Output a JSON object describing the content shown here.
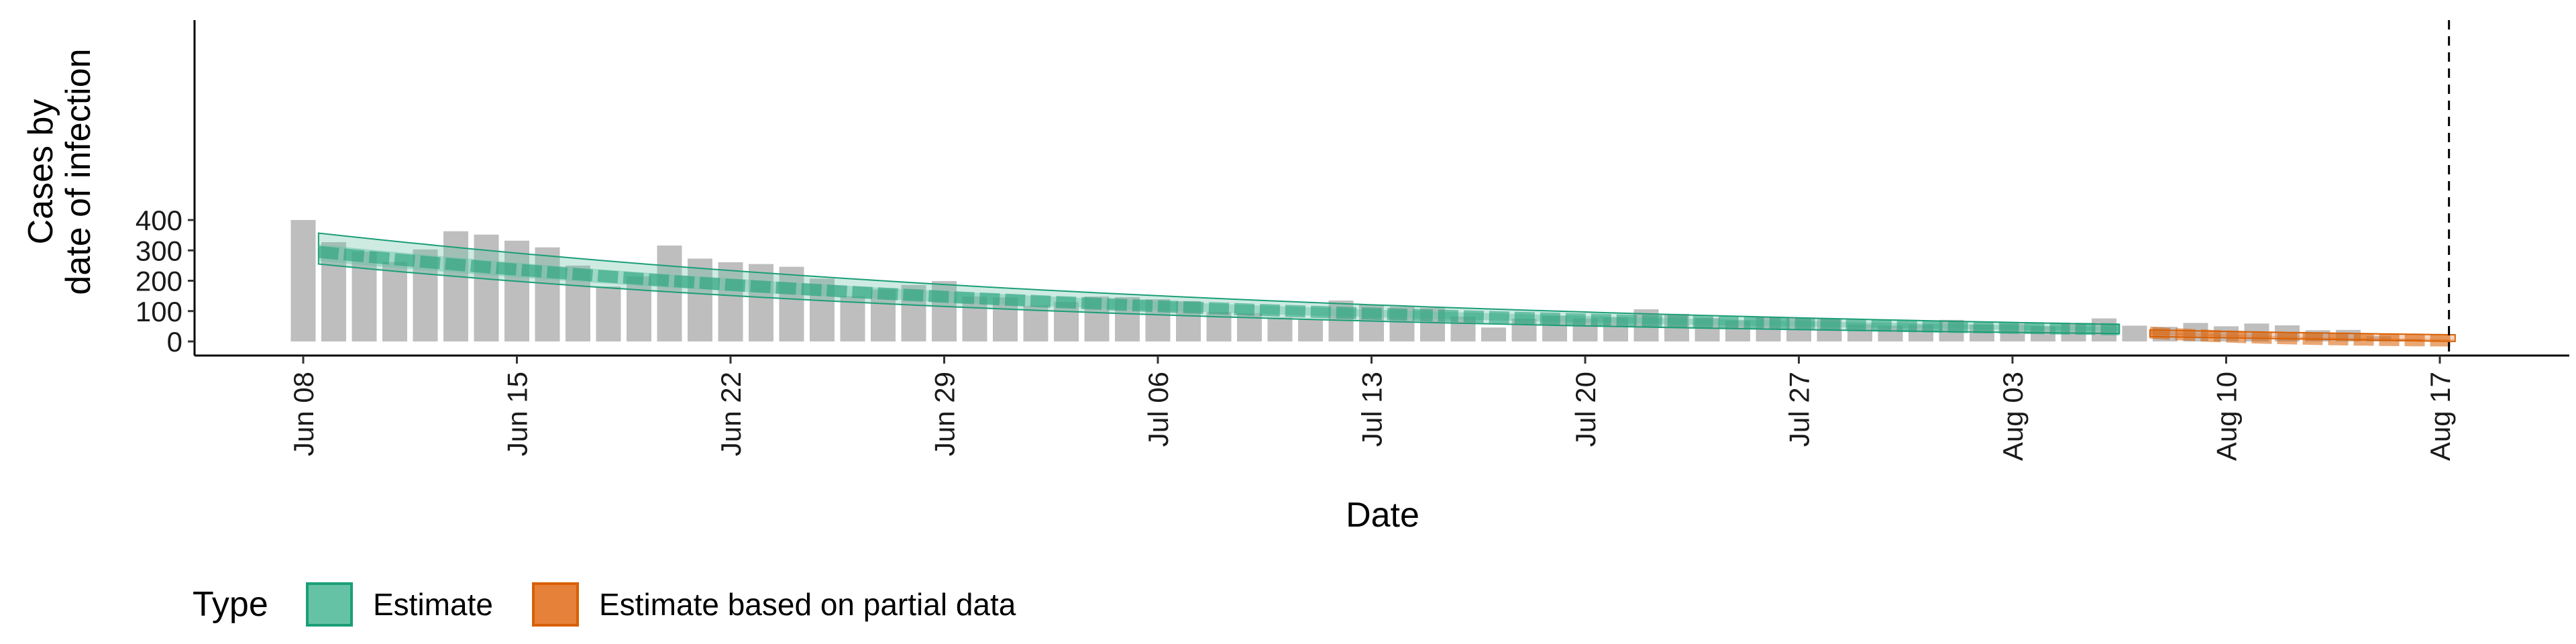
{
  "chart_data": {
    "type": "bar",
    "xlabel": "Date",
    "ylabel_lines": [
      "Cases by",
      "date of infection"
    ],
    "ylim": [
      0,
      420
    ],
    "yticks": [
      0,
      100,
      200,
      300,
      400
    ],
    "x_start_date": "2020-06-08",
    "x_end_marker": "2020-08-17",
    "x_ticks": [
      {
        "label": "Jun 08",
        "day": 0
      },
      {
        "label": "Jun 15",
        "day": 7
      },
      {
        "label": "Jun 22",
        "day": 14
      },
      {
        "label": "Jun 29",
        "day": 21
      },
      {
        "label": "Jul 06",
        "day": 28
      },
      {
        "label": "Jul 13",
        "day": 35
      },
      {
        "label": "Jul 20",
        "day": 42
      },
      {
        "label": "Jul 27",
        "day": 49
      },
      {
        "label": "Aug 03",
        "day": 56
      },
      {
        "label": "Aug 10",
        "day": 63
      },
      {
        "label": "Aug 17",
        "day": 70
      }
    ],
    "bars": [
      400,
      327,
      296,
      262,
      303,
      363,
      352,
      332,
      310,
      250,
      181,
      214,
      316,
      273,
      261,
      255,
      246,
      207,
      149,
      171,
      186,
      199,
      148,
      145,
      118,
      130,
      148,
      146,
      139,
      133,
      97,
      93,
      79,
      72,
      135,
      121,
      115,
      111,
      82,
      46,
      75,
      84,
      76,
      79,
      106,
      91,
      77,
      69,
      81,
      76,
      74,
      56,
      52,
      55,
      71,
      56,
      58,
      50,
      58,
      76,
      52,
      48,
      61,
      50,
      59,
      53,
      37,
      38,
      17,
      8
    ],
    "series": [
      {
        "name": "Estimate",
        "color": "#1b9e77",
        "fill": "#66c2a5",
        "start_day": 0.5,
        "end_day": 59.5,
        "median": [
          295,
          40
        ],
        "inner": [
          [
            265,
            320
          ],
          [
            34,
            48
          ]
        ],
        "outer": [
          [
            255,
            357
          ],
          [
            26,
            56
          ]
        ]
      },
      {
        "name": "Estimate based on partial data",
        "color": "#d95f02",
        "fill": "#e6813a",
        "start_day": 60.5,
        "end_day": 70.5,
        "median": [
          29,
          3
        ],
        "inner": [
          [
            22,
            34
          ],
          [
            0,
            7
          ]
        ],
        "outer": [
          [
            16,
            38
          ],
          [
            0,
            22
          ]
        ]
      }
    ],
    "legend": {
      "title": "Type",
      "position": "bottom-left"
    }
  }
}
